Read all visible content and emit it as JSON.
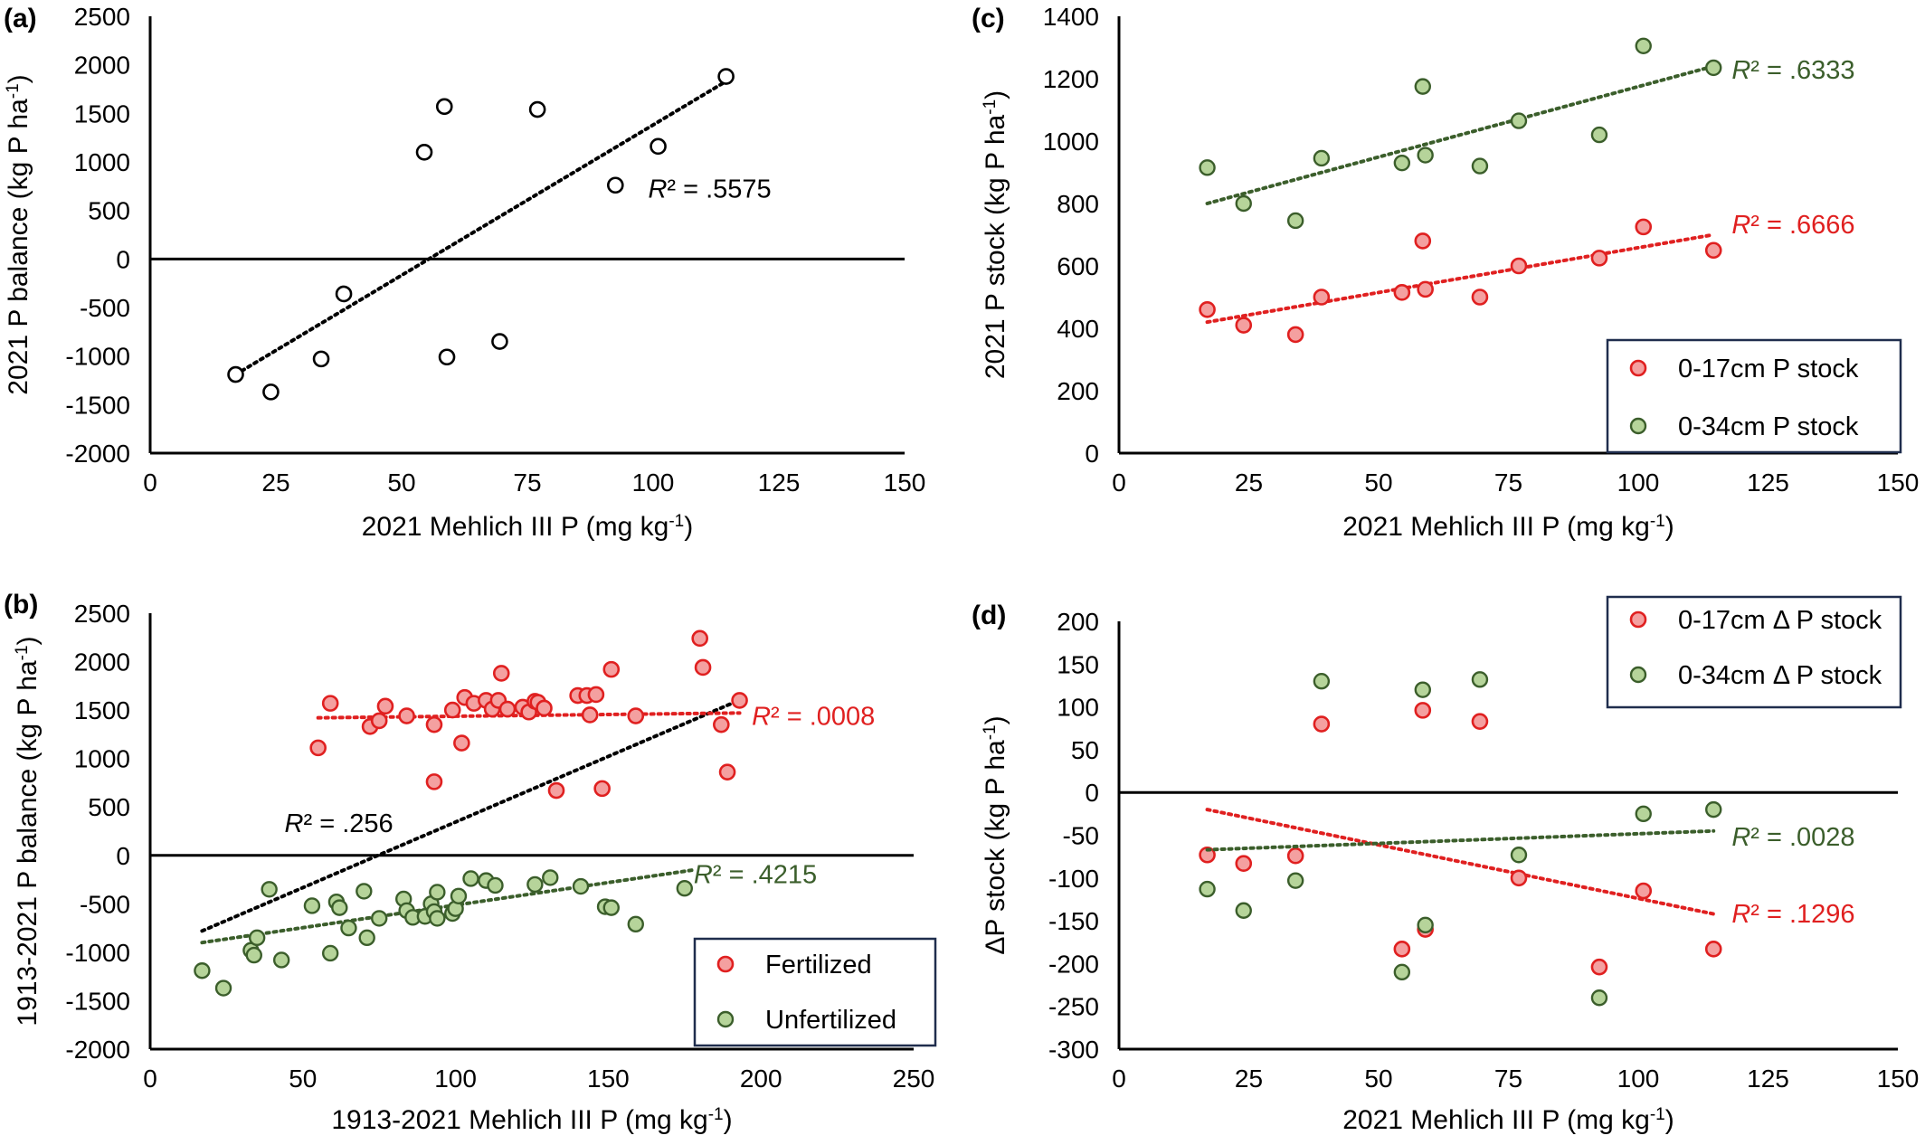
{
  "colors": {
    "red": "#e02020",
    "red_fill": "#f4a0a0",
    "green": "#3b5e2b",
    "green_fill": "#b6d49a",
    "black": "#000000",
    "legend_border": "#1f2d4d"
  },
  "chart_data": [
    {
      "panel": "(a)",
      "type": "scatter",
      "xlabel": "2021 Mehlich III P (mg kg",
      "xlabel_sup": "-1",
      "xlabel_end": ")",
      "ylabel": "2021 P balance (kg P ha",
      "ylabel_sup": "-1",
      "ylabel_end": ")",
      "xlim": [
        0,
        150
      ],
      "ylim": [
        -2000,
        2500
      ],
      "xticks": [
        "0",
        "25",
        "50",
        "75",
        "100",
        "125",
        "150"
      ],
      "yticks": [
        "-2000",
        "-1500",
        "-1000",
        "-500",
        "0",
        "500",
        "1000",
        "1500",
        "2000",
        "2500"
      ],
      "legend": [],
      "series": [
        {
          "marker": "open",
          "points": [
            [
              17,
              -1190
            ],
            [
              24,
              -1370
            ],
            [
              34,
              -1030
            ],
            [
              38.5,
              -360
            ],
            [
              54.5,
              1100
            ],
            [
              58.5,
              1570
            ],
            [
              59,
              -1010
            ],
            [
              69.5,
              -850
            ],
            [
              77,
              1540
            ],
            [
              92.5,
              760
            ],
            [
              101,
              1160
            ],
            [
              114.5,
              1880
            ]
          ],
          "trend": [
            [
              17,
              -1190
            ],
            [
              114.5,
              1830
            ]
          ],
          "r2_label": "R² = .5575",
          "label_at": [
            99,
            630
          ]
        }
      ]
    },
    {
      "panel": "(b)",
      "type": "scatter",
      "xlabel": "1913-2021 Mehlich III P (mg kg",
      "xlabel_sup": "-1",
      "xlabel_end": ")",
      "ylabel": "1913-2021 P balance (kg P ha",
      "ylabel_sup": "-1",
      "ylabel_end": ")",
      "xlim": [
        0,
        250
      ],
      "ylim": [
        -2000,
        2500
      ],
      "xticks": [
        "0",
        "50",
        "100",
        "150",
        "200",
        "250"
      ],
      "yticks": [
        "-2000",
        "-1500",
        "-1000",
        "-500",
        "0",
        "500",
        "1000",
        "1500",
        "2000",
        "2500"
      ],
      "legend": [
        {
          "name": "Fertilized",
          "series": 0
        },
        {
          "name": "Unfertilized",
          "series": 1
        }
      ],
      "overall_trend": {
        "points": [
          [
            17,
            -780
          ],
          [
            192,
            1590
          ]
        ],
        "r2_label": "R² = .256",
        "label_at": [
          44,
          240
        ]
      },
      "series": [
        {
          "name": "Fertilized",
          "marker": "red",
          "points": [
            [
              55,
              1110
            ],
            [
              59,
              1570
            ],
            [
              72,
              1330
            ],
            [
              75,
              1390
            ],
            [
              77,
              1540
            ],
            [
              84,
              1440
            ],
            [
              93,
              1350
            ],
            [
              93,
              760
            ],
            [
              99,
              1500
            ],
            [
              102,
              1160
            ],
            [
              103,
              1630
            ],
            [
              106,
              1570
            ],
            [
              110,
              1600
            ],
            [
              112,
              1510
            ],
            [
              114,
              1600
            ],
            [
              115,
              1880
            ],
            [
              117,
              1510
            ],
            [
              122,
              1530
            ],
            [
              124,
              1480
            ],
            [
              126,
              1590
            ],
            [
              127,
              1580
            ],
            [
              129,
              1520
            ],
            [
              133,
              670
            ],
            [
              140,
              1650
            ],
            [
              143,
              1650
            ],
            [
              144,
              1450
            ],
            [
              146,
              1660
            ],
            [
              148,
              690
            ],
            [
              151,
              1920
            ],
            [
              159,
              1440
            ],
            [
              180,
              2240
            ],
            [
              181,
              1940
            ],
            [
              187,
              1350
            ],
            [
              189,
              860
            ],
            [
              193,
              1600
            ]
          ],
          "trend": [
            [
              55,
              1420
            ],
            [
              193,
              1470
            ]
          ],
          "r2_label": "R² = .0008",
          "label_at": [
            197,
            1345
          ]
        },
        {
          "name": "Unfertilized",
          "marker": "green",
          "points": [
            [
              17,
              -1190
            ],
            [
              24,
              -1370
            ],
            [
              33,
              -980
            ],
            [
              34,
              -1030
            ],
            [
              35,
              -850
            ],
            [
              39,
              -350
            ],
            [
              43,
              -1080
            ],
            [
              53,
              -520
            ],
            [
              59,
              -1010
            ],
            [
              61,
              -480
            ],
            [
              62,
              -540
            ],
            [
              65,
              -750
            ],
            [
              70,
              -370
            ],
            [
              71,
              -850
            ],
            [
              75,
              -650
            ],
            [
              83,
              -450
            ],
            [
              84,
              -570
            ],
            [
              86,
              -640
            ],
            [
              90,
              -630
            ],
            [
              92,
              -500
            ],
            [
              93,
              -580
            ],
            [
              94,
              -380
            ],
            [
              94,
              -650
            ],
            [
              99,
              -600
            ],
            [
              100,
              -550
            ],
            [
              101,
              -420
            ],
            [
              105,
              -240
            ],
            [
              110,
              -260
            ],
            [
              113,
              -310
            ],
            [
              126,
              -300
            ],
            [
              131,
              -230
            ],
            [
              141,
              -320
            ],
            [
              149,
              -530
            ],
            [
              151,
              -540
            ],
            [
              159,
              -710
            ],
            [
              175,
              -340
            ]
          ],
          "trend": [
            [
              17,
              -900
            ],
            [
              178,
              -150
            ]
          ],
          "r2_label": "R² = .4215",
          "label_at": [
            178,
            -285
          ]
        }
      ]
    },
    {
      "panel": "(c)",
      "type": "scatter",
      "xlabel": "2021 Mehlich III P (mg kg",
      "xlabel_sup": "-1",
      "xlabel_end": ")",
      "ylabel": "2021 P stock (kg P ha",
      "ylabel_sup": "-1",
      "ylabel_end": ")",
      "xlim": [
        0,
        150
      ],
      "ylim": [
        0,
        1400
      ],
      "xticks": [
        "0",
        "25",
        "50",
        "75",
        "100",
        "125",
        "150"
      ],
      "yticks": [
        "0",
        "200",
        "400",
        "600",
        "800",
        "1000",
        "1200",
        "1400"
      ],
      "legend": [
        {
          "name": "0-17cm P stock",
          "series": 0
        },
        {
          "name": "0-34cm P stock",
          "series": 1
        }
      ],
      "series": [
        {
          "name": "0-17cm P stock",
          "marker": "red",
          "points": [
            [
              17,
              460
            ],
            [
              24,
              410
            ],
            [
              34,
              380
            ],
            [
              39,
              500
            ],
            [
              54.5,
              515
            ],
            [
              58.5,
              680
            ],
            [
              59,
              525
            ],
            [
              69.5,
              500
            ],
            [
              77,
              600
            ],
            [
              92.5,
              625
            ],
            [
              101,
              725
            ],
            [
              114.5,
              650
            ]
          ],
          "trend": [
            [
              17,
              420
            ],
            [
              114.5,
              700
            ]
          ],
          "r2_label": "R² = .6666",
          "label_at": [
            118,
            705
          ]
        },
        {
          "name": "0-34cm P stock",
          "marker": "green",
          "points": [
            [
              17,
              915
            ],
            [
              24,
              800
            ],
            [
              34,
              745
            ],
            [
              39,
              945
            ],
            [
              54.5,
              930
            ],
            [
              58.5,
              1175
            ],
            [
              59,
              955
            ],
            [
              69.5,
              920
            ],
            [
              77,
              1065
            ],
            [
              92.5,
              1020
            ],
            [
              101,
              1305
            ],
            [
              114.5,
              1235
            ]
          ],
          "trend": [
            [
              17,
              800
            ],
            [
              114.5,
              1240
            ]
          ],
          "r2_label": "R² = .6333",
          "label_at": [
            118,
            1200
          ]
        }
      ]
    },
    {
      "panel": "(d)",
      "type": "scatter",
      "xlabel": "2021 Mehlich III P (mg kg",
      "xlabel_sup": "-1",
      "xlabel_end": ")",
      "ylabel": "ΔP stock (kg P ha",
      "ylabel_sup": "-1",
      "ylabel_end": ")",
      "xlim": [
        0,
        150
      ],
      "ylim": [
        -300,
        200
      ],
      "xticks": [
        "0",
        "25",
        "50",
        "75",
        "100",
        "125",
        "150"
      ],
      "yticks": [
        "-300",
        "-250",
        "-200",
        "-150",
        "-100",
        "-50",
        "0",
        "50",
        "100",
        "150",
        "200"
      ],
      "legend": [
        {
          "name": "0-17cm Δ P stock",
          "series": 0
        },
        {
          "name": "0-34cm Δ P stock",
          "series": 1
        }
      ],
      "series": [
        {
          "name": "0-17cm Δ P stock",
          "marker": "red",
          "points": [
            [
              17,
              -73
            ],
            [
              24,
              -83
            ],
            [
              34,
              -74
            ],
            [
              39,
              80
            ],
            [
              54.5,
              -183
            ],
            [
              58.5,
              96
            ],
            [
              59,
              -160
            ],
            [
              69.5,
              83
            ],
            [
              77,
              -100
            ],
            [
              92.5,
              -204
            ],
            [
              101,
              -115
            ],
            [
              114.5,
              -183
            ]
          ],
          "trend": [
            [
              17,
              -20
            ],
            [
              114.5,
              -142
            ]
          ],
          "r2_label": "R² = .1296",
          "label_at": [
            118,
            -152
          ]
        },
        {
          "name": "0-34cm Δ P stock",
          "marker": "green",
          "points": [
            [
              17,
              -113
            ],
            [
              24,
              -138
            ],
            [
              34,
              -103
            ],
            [
              39,
              130
            ],
            [
              54.5,
              -210
            ],
            [
              58.5,
              120
            ],
            [
              59,
              -155
            ],
            [
              69.5,
              132
            ],
            [
              77,
              -73
            ],
            [
              92.5,
              -240
            ],
            [
              101,
              -25
            ],
            [
              114.5,
              -20
            ]
          ],
          "trend": [
            [
              17,
              -67
            ],
            [
              114.5,
              -45
            ]
          ],
          "r2_label": "R² = .0028",
          "label_at": [
            118,
            -62
          ]
        }
      ]
    }
  ]
}
